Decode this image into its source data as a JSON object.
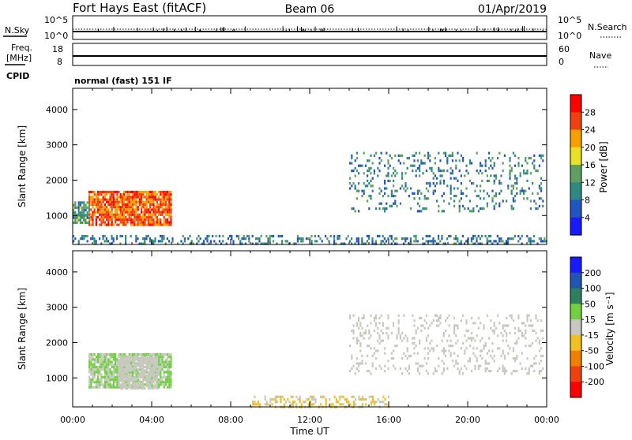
{
  "header": {
    "station": "Fort Hays East (fitACF)",
    "beam": "Beam 06",
    "date": "01/Apr/2019"
  },
  "noise_panel": {
    "left_label": "N.Sky",
    "right_label": "N.Search",
    "left_ticks": [
      "10^5",
      "10^0"
    ],
    "right_ticks": [
      "10^5",
      "10^0"
    ]
  },
  "freq_panel": {
    "left_label_line1": "Freq.",
    "left_label_line2": "[MHz]",
    "right_label": "Nave",
    "left_ticks": [
      "18",
      "8"
    ],
    "right_ticks": [
      "60",
      "0"
    ]
  },
  "cpid": {
    "label": "CPID",
    "mode": "normal (fast) 151 IF"
  },
  "chart_data": [
    {
      "type": "heatmap",
      "name": "power",
      "xlabel": "Time UT",
      "ylabel": "Slant Range [km]",
      "xlim": [
        0,
        24
      ],
      "ylim": [
        180,
        4600
      ],
      "x_ticks": [
        "00:00",
        "04:00",
        "08:00",
        "12:00",
        "16:00",
        "20:00",
        "00:00"
      ],
      "y_ticks": [
        "1000",
        "2000",
        "3000",
        "4000"
      ],
      "colorbar": {
        "label": "Power [dB]",
        "range": [
          0,
          32
        ],
        "ticks": [
          "4",
          "8",
          "12",
          "16",
          "20",
          "24",
          "28"
        ],
        "colors": [
          "#1a1aff",
          "#2255c0",
          "#2e8a80",
          "#5fa060",
          "#e8e020",
          "#f7a000",
          "#f04010",
          "#ff0000"
        ]
      },
      "regions": [
        {
          "t0": 0.8,
          "t1": 5.0,
          "r0": 700,
          "r1": 1700,
          "value": 25
        },
        {
          "t0": 0.0,
          "t1": 0.8,
          "r0": 800,
          "r1": 1400,
          "value": 12
        },
        {
          "t0": 14.0,
          "t1": 23.8,
          "r0": 1100,
          "r1": 2800,
          "value": 10
        },
        {
          "t0": 0.0,
          "t1": 24.0,
          "r0": 200,
          "r1": 450,
          "value": 9
        }
      ]
    },
    {
      "type": "heatmap",
      "name": "velocity",
      "xlabel": "Time UT",
      "ylabel": "Slant Range [km]",
      "xlim": [
        0,
        24
      ],
      "ylim": [
        180,
        4600
      ],
      "x_ticks": [
        "00:00",
        "04:00",
        "08:00",
        "12:00",
        "16:00",
        "20:00",
        "00:00"
      ],
      "y_ticks": [
        "1000",
        "2000",
        "3000",
        "4000"
      ],
      "colorbar": {
        "label": "Velocity [m s⁻¹]",
        "range": [
          -250,
          250
        ],
        "ticks": [
          "200",
          "100",
          "50",
          "15",
          "-15",
          "-50",
          "-100",
          "-200"
        ],
        "colors": [
          "#1a1aff",
          "#2255b0",
          "#2e8060",
          "#70d040",
          "#c8c8c0",
          "#f0c020",
          "#f08000",
          "#f04010",
          "#ff0000"
        ]
      },
      "regions": [
        {
          "t0": 0.8,
          "t1": 5.0,
          "r0": 700,
          "r1": 1700,
          "value": 30
        },
        {
          "t0": 2.3,
          "t1": 4.3,
          "r0": 700,
          "r1": 1600,
          "value": 0
        },
        {
          "t0": 14.0,
          "t1": 23.8,
          "r0": 1100,
          "r1": 2800,
          "value": 0
        },
        {
          "t0": 9.0,
          "t1": 16.0,
          "r0": 200,
          "r1": 500,
          "value": -30
        }
      ]
    }
  ]
}
